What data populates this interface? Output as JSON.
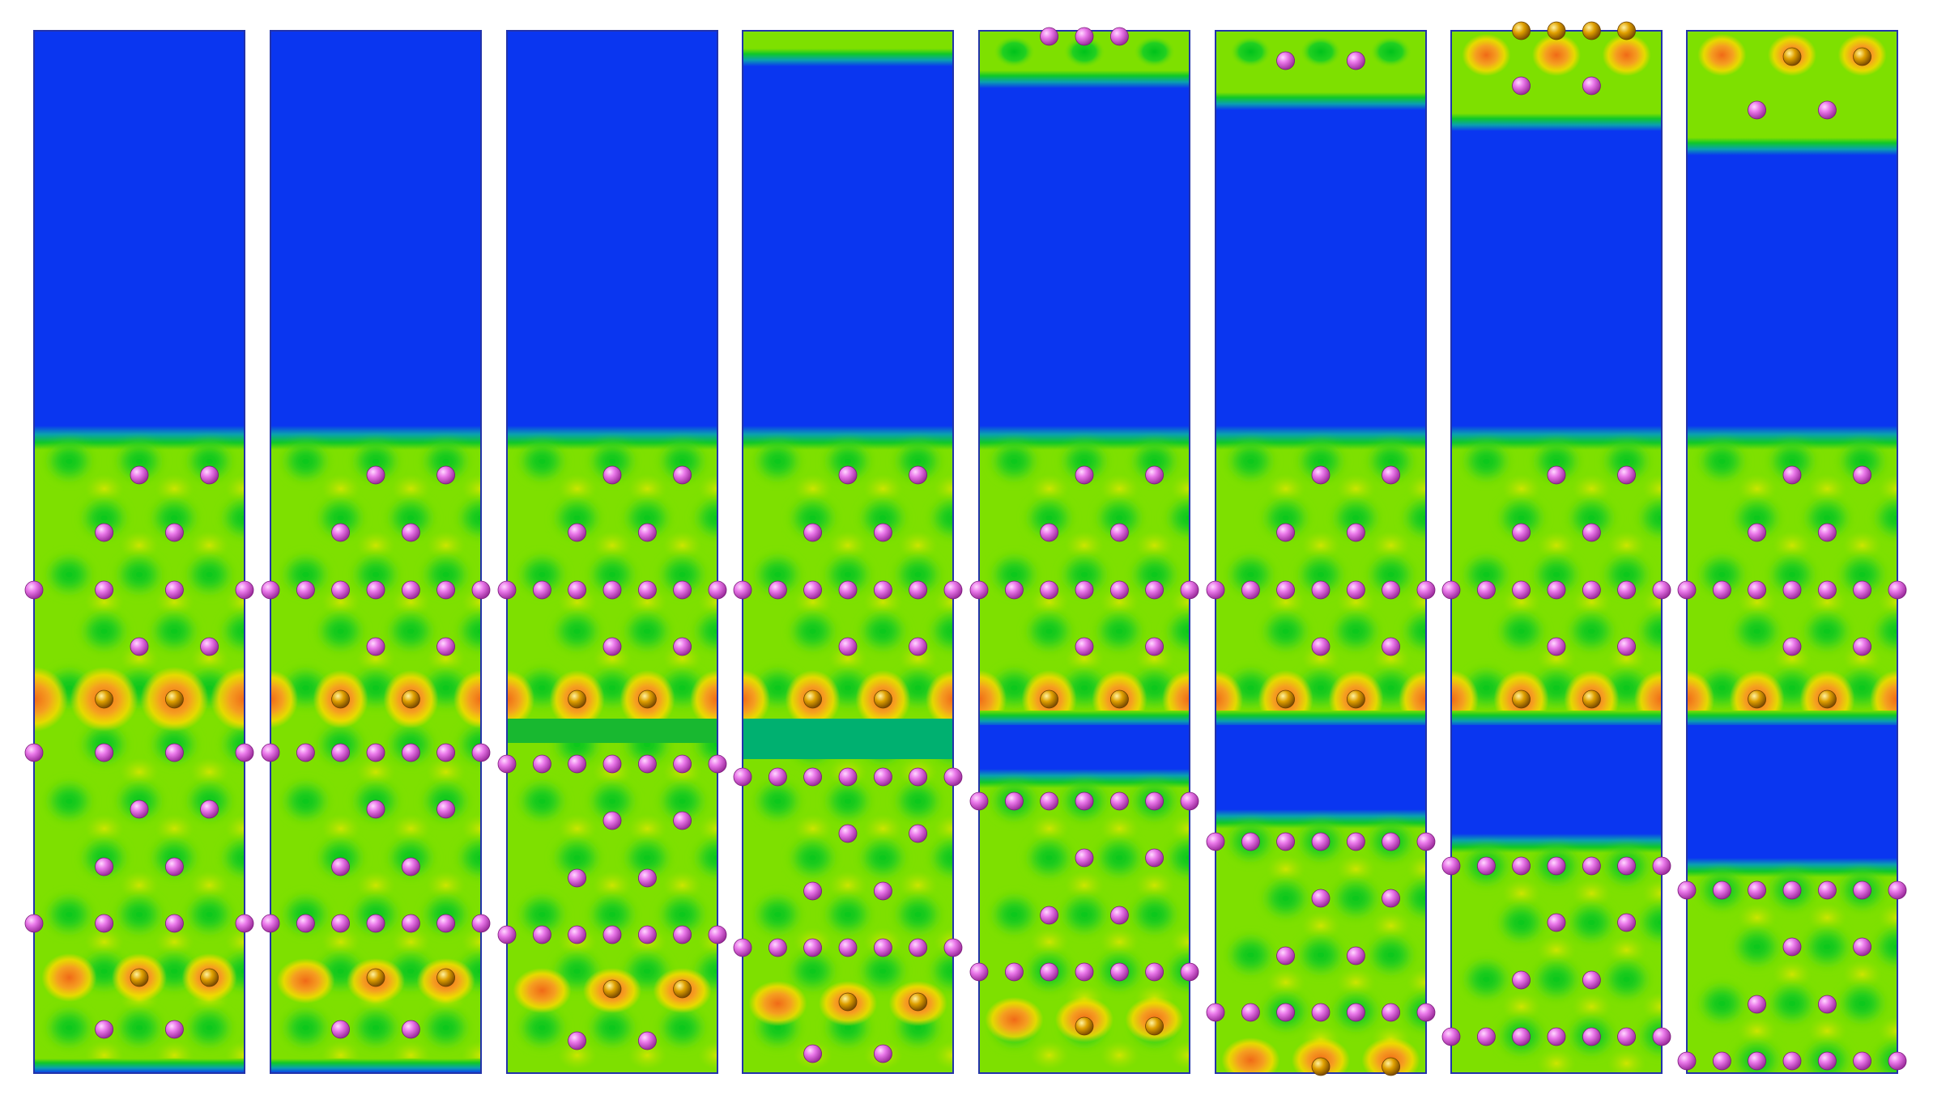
{
  "figure": {
    "kind": "charge-density slab panels",
    "panel_count": 8,
    "colors": {
      "background": "#ffffff",
      "frame": "#2233aa",
      "vacuum": "#0a36f0",
      "low": "#00c81e",
      "mid": "#7ee000",
      "high": "#ffd800",
      "peak": "#f07820",
      "atom_pink": "#e060e0",
      "atom_gold": "#e0a000"
    },
    "panels": [
      {
        "vacuum_gaps": 0,
        "top_cluster": false
      },
      {
        "vacuum_gaps": 0,
        "top_cluster": false
      },
      {
        "vacuum_gaps": 0,
        "top_cluster": false
      },
      {
        "vacuum_gaps": 0,
        "top_cluster": true
      },
      {
        "vacuum_gaps": 1,
        "top_cluster": true
      },
      {
        "vacuum_gaps": 1,
        "top_cluster": true
      },
      {
        "vacuum_gaps": 1,
        "top_cluster": true
      },
      {
        "vacuum_gaps": 1,
        "top_cluster": true
      }
    ]
  }
}
